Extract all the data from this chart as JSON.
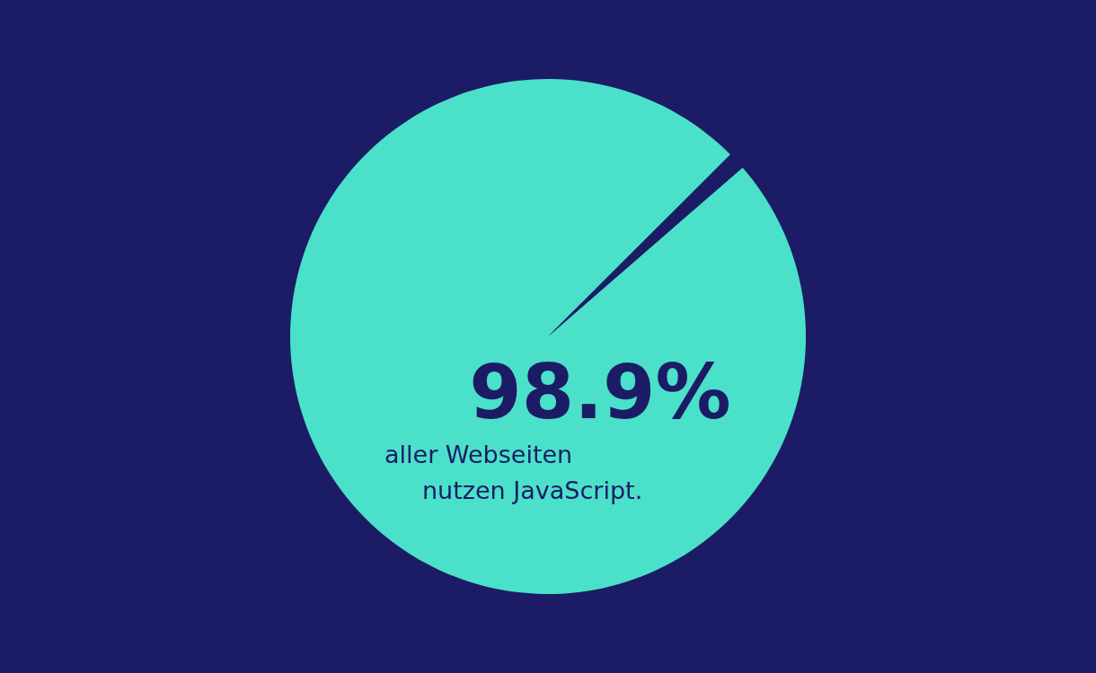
{
  "chart_data": {
    "type": "pie",
    "categories": [
      null,
      null
    ],
    "values": [
      98.9,
      1.1
    ],
    "colors": [
      "#4be0c9",
      "#1b1b66"
    ],
    "value_labels": [
      "98.9%",
      null
    ],
    "annotations": [
      "aller Webseiten",
      "nutzen JavaScript."
    ]
  }
}
